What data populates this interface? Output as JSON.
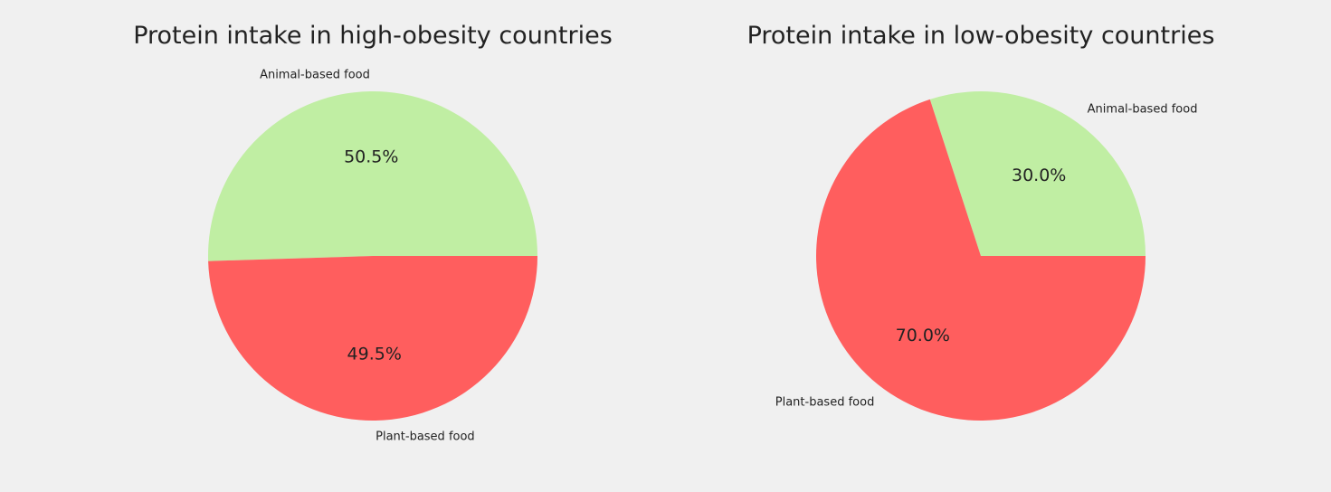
{
  "chart_data": [
    {
      "type": "pie",
      "title": "Protein intake in high-obesity countries",
      "slices": [
        {
          "label": "Animal-based food",
          "value": 50.5,
          "pct_label": "50.5%",
          "color": "#c0eea3"
        },
        {
          "label": "Plant-based food",
          "value": 49.5,
          "pct_label": "49.5%",
          "color": "#ff5e5e"
        }
      ],
      "legend": false
    },
    {
      "type": "pie",
      "title": "Protein intake in low-obesity countries",
      "slices": [
        {
          "label": "Animal-based food",
          "value": 30.0,
          "pct_label": "30.0%",
          "color": "#c0eea3"
        },
        {
          "label": "Plant-based food",
          "value": 70.0,
          "pct_label": "70.0%",
          "color": "#ff5e5e"
        }
      ],
      "legend": false
    }
  ],
  "background_color": "#f0f0f0"
}
